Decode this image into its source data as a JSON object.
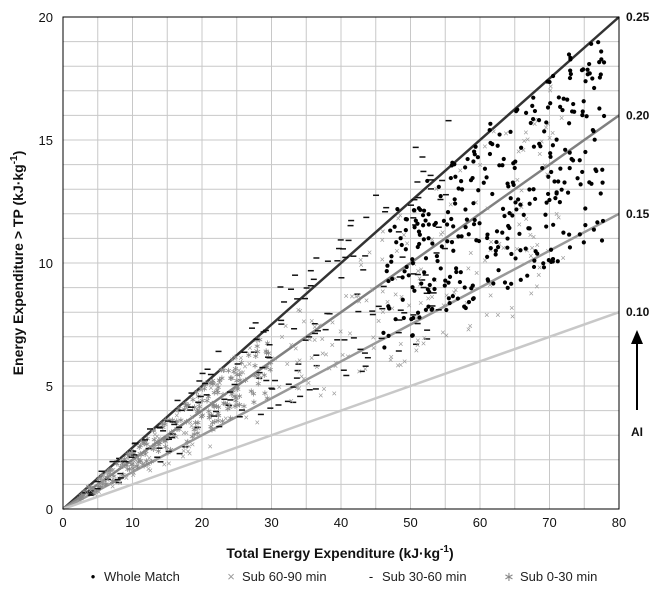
{
  "chart_data": {
    "type": "scatter",
    "title": "",
    "xlabel": "Total Energy Expenditure (kJ·kg",
    "xlabel_sup": "-1",
    "xlabel_end": ")",
    "ylabel": "Energy Expenditure > TP (kJ·kg",
    "ylabel_sup": "-1",
    "ylabel_end": ")",
    "xlim": [
      0,
      80
    ],
    "ylim": [
      0,
      20
    ],
    "x_ticks": [
      "0",
      "10",
      "20",
      "30",
      "40",
      "50",
      "60",
      "70",
      "80"
    ],
    "y_ticks": [
      "0",
      "5",
      "10",
      "15",
      "20"
    ],
    "grid": true,
    "reference_lines": [
      {
        "label": "0.25",
        "slope": 0.25,
        "color": "#333333"
      },
      {
        "label": "0.20",
        "slope": 0.2,
        "color": "#808080"
      },
      {
        "label": "0.15",
        "slope": 0.15,
        "color": "#999999"
      },
      {
        "label": "0.10",
        "slope": 0.1,
        "color": "#c8c8c8"
      }
    ],
    "ai_label": "AI",
    "legend_position": "bottom",
    "series": [
      {
        "name": "Whole Match",
        "marker": "•",
        "color": "#000000",
        "x_range": [
          46,
          78
        ],
        "ratio_range": [
          0.14,
          0.255
        ],
        "count": 330
      },
      {
        "name": "Sub 60-90 min",
        "marker": "×",
        "color": "#999999",
        "x_range": [
          3,
          72
        ],
        "ratio_range": [
          0.12,
          0.25
        ],
        "count": 260
      },
      {
        "name": "Sub 30-60 min",
        "marker": "-",
        "color": "#111111",
        "x_range": [
          3,
          56
        ],
        "ratio_range": [
          0.13,
          0.29
        ],
        "count": 200
      },
      {
        "name": "Sub 0-30 min",
        "marker": "∗",
        "color": "#888888",
        "x_range": [
          2,
          30
        ],
        "ratio_range": [
          0.15,
          0.25
        ],
        "count": 230
      }
    ]
  }
}
